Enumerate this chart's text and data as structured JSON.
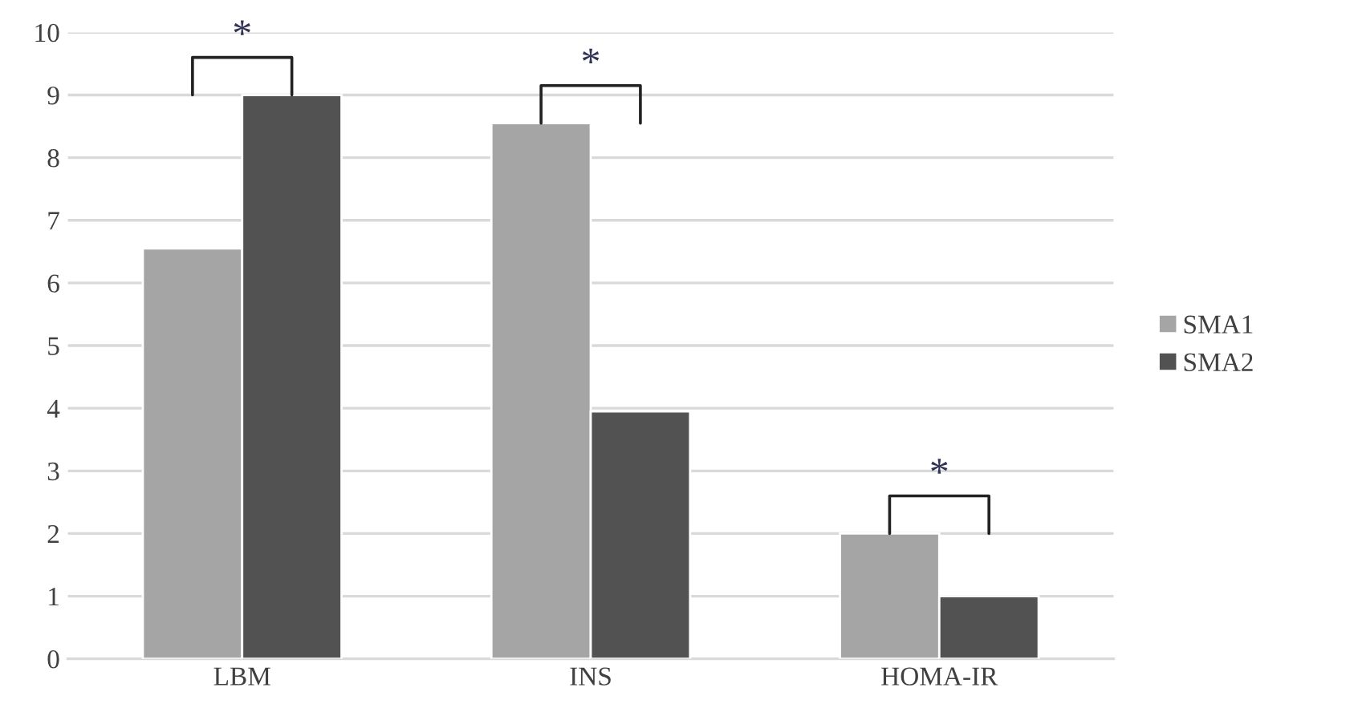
{
  "chart_data": {
    "type": "bar",
    "categories": [
      "LBM",
      "INS",
      "HOMA-IR"
    ],
    "series": [
      {
        "name": "SMA1",
        "color": "#a5a5a5",
        "values": [
          6.55,
          8.55,
          2.0
        ]
      },
      {
        "name": "SMA2",
        "color": "#525252",
        "values": [
          9.0,
          3.95,
          1.0
        ]
      }
    ],
    "ylim": [
      0,
      10
    ],
    "yticks": [
      0,
      1,
      2,
      3,
      4,
      5,
      6,
      7,
      8,
      9,
      10
    ],
    "grid": "y",
    "legend": "right",
    "annotations": [
      "*",
      "*",
      "*"
    ]
  }
}
